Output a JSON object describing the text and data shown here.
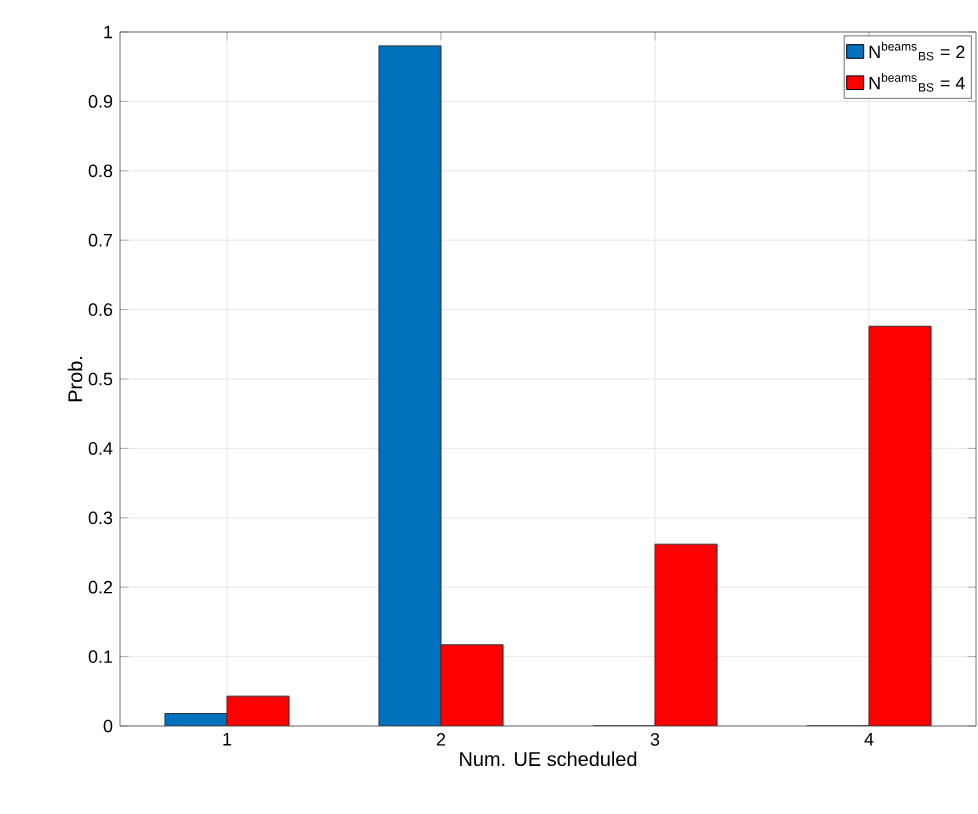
{
  "chart_data": {
    "type": "bar",
    "xlabel": "Num. UE scheduled",
    "ylabel": "Prob.",
    "categories": [
      "1",
      "2",
      "3",
      "4"
    ],
    "series": [
      {
        "name": "N$^{beams}$$_{BS}$ = 2",
        "color": "#0072bd",
        "values": [
          0.018,
          0.98,
          0,
          0
        ]
      },
      {
        "name": "N$^{beams}$$_{BS}$ = 4",
        "color": "#ff0000",
        "values": [
          0.043,
          0.117,
          0.262,
          0.576
        ]
      }
    ],
    "ylim": [
      0,
      1
    ],
    "yticks": [
      0,
      0.1,
      0.2,
      0.3,
      0.4,
      0.5,
      0.6,
      0.7,
      0.8,
      0.9,
      1
    ],
    "grid": true,
    "legend": "top right"
  }
}
